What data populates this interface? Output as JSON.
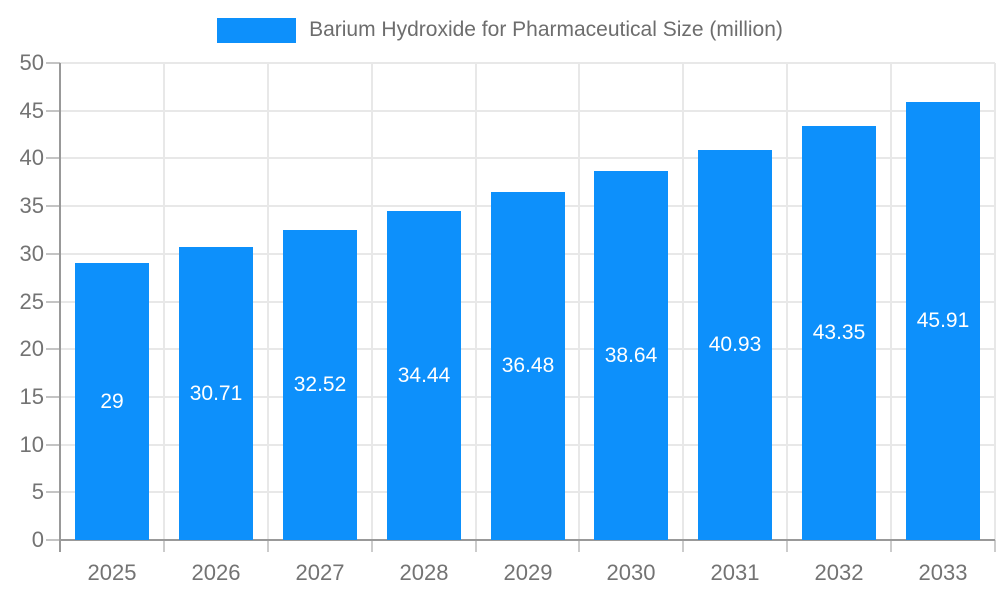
{
  "chart_data": {
    "type": "bar",
    "title": "Barium Hydroxide for Pharmaceutical Size (million)",
    "categories": [
      "2025",
      "2026",
      "2027",
      "2028",
      "2029",
      "2030",
      "2031",
      "2032",
      "2033"
    ],
    "values": [
      29,
      30.71,
      32.52,
      34.44,
      36.48,
      38.64,
      40.93,
      43.35,
      45.91
    ],
    "value_labels": [
      "29",
      "30.71",
      "32.52",
      "34.44",
      "36.48",
      "38.64",
      "40.93",
      "43.35",
      "45.91"
    ],
    "xlabel": "",
    "ylabel": "",
    "ylim": [
      0,
      50
    ],
    "yticks": [
      0,
      5,
      10,
      15,
      20,
      25,
      30,
      35,
      40,
      45,
      50
    ],
    "grid": true,
    "legend_position": "top",
    "bar_color": "#0d90fb",
    "bar_label_color": "#ffffff",
    "grid_color": "#e8e8e8",
    "axis_color": "#999999",
    "tick_label_color": "#737373",
    "title_color": "#6d6d6d"
  }
}
